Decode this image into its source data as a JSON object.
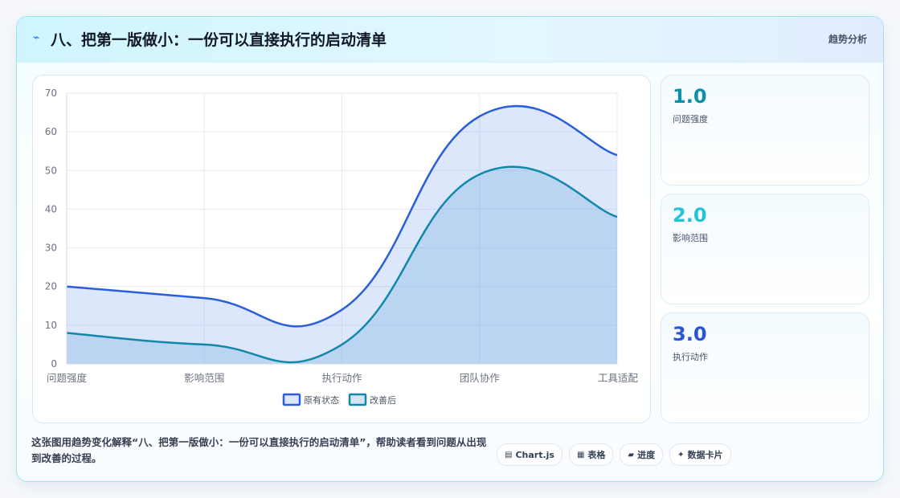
{
  "header": {
    "icon": "lightning-icon",
    "title": "八、把第一版做小：一份可以直接执行的启动清单",
    "tag": "趋势分析"
  },
  "stats": [
    {
      "value": "1.0",
      "label": "问题强度",
      "color": "#0e8fa8"
    },
    {
      "value": "2.0",
      "label": "影响范围",
      "color": "#22c3d8"
    },
    {
      "value": "3.0",
      "label": "执行动作",
      "color": "#2b55d6"
    }
  ],
  "description": "这张图用趋势变化解释“八、把第一版做小：一份可以直接执行的启动清单”，帮助读者看到问题从出现到改善的过程。",
  "pills": [
    {
      "icon": "▤",
      "label": "Chart.js"
    },
    {
      "icon": "▦",
      "label": "表格"
    },
    {
      "icon": "▰",
      "label": "进度"
    },
    {
      "icon": "✦",
      "label": "数据卡片"
    }
  ],
  "chart_data": {
    "type": "area",
    "categories": [
      "问题强度",
      "影响范围",
      "执行动作",
      "团队协作",
      "工具适配"
    ],
    "series": [
      {
        "name": "原有状态",
        "values": [
          20,
          17,
          14,
          64,
          54
        ],
        "color": "#2b5fd9",
        "fill": "rgba(120,160,240,0.25)"
      },
      {
        "name": "改善后",
        "values": [
          8,
          5,
          5,
          49,
          38
        ],
        "color": "#1188aa",
        "fill": "rgba(110,170,220,0.30)"
      }
    ],
    "ylim": [
      0,
      70
    ],
    "yticks": [
      0,
      10,
      20,
      30,
      40,
      50,
      60,
      70
    ],
    "grid": true,
    "legend": "bottom"
  }
}
